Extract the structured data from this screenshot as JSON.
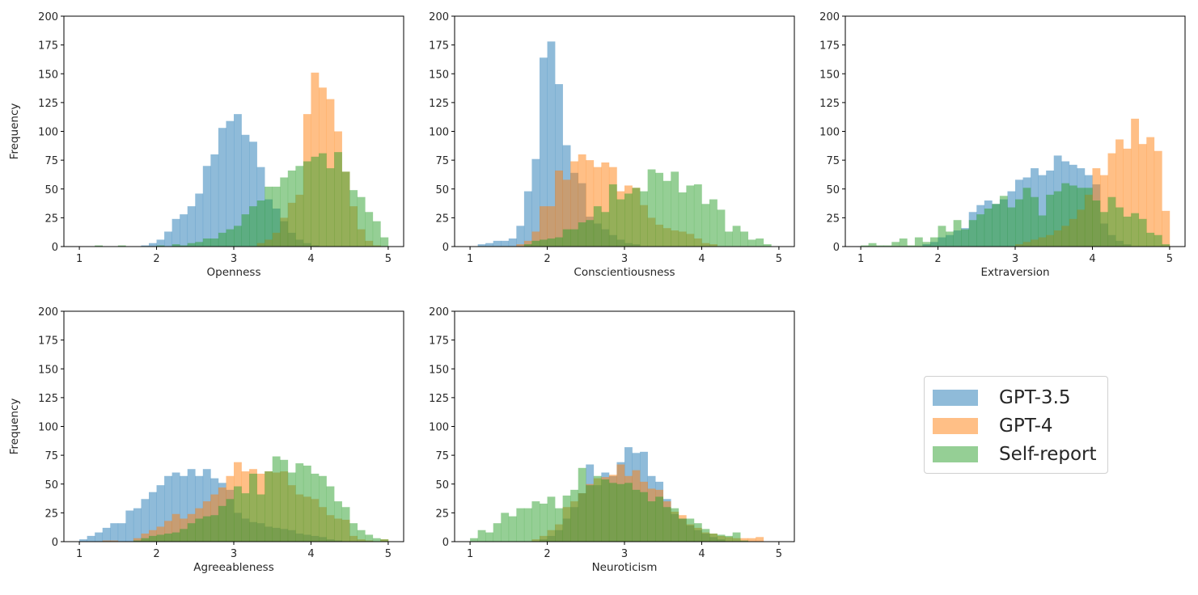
{
  "chart_data": [
    {
      "type": "bar",
      "xlabel": "Openness",
      "ylabel": "Frequency",
      "xlim": [
        0.8,
        5.2
      ],
      "ylim": [
        0,
        200
      ],
      "xticks": [
        1,
        2,
        3,
        4,
        5
      ],
      "yticks": [
        0,
        25,
        50,
        75,
        100,
        125,
        150,
        175,
        200
      ],
      "bin_start": 1.0,
      "bin_width": 0.1,
      "series": [
        {
          "name": "GPT-3.5",
          "color": "#1f77b4",
          "values": [
            0,
            0,
            0,
            0,
            0,
            0,
            0,
            0,
            1,
            3,
            6,
            13,
            24,
            28,
            35,
            46,
            70,
            80,
            103,
            109,
            115,
            97,
            91,
            69,
            41,
            33,
            22,
            12,
            6,
            3,
            1,
            0,
            0,
            0,
            0,
            0,
            0,
            0,
            0,
            0
          ]
        },
        {
          "name": "GPT-4",
          "color": "#ff7f0e",
          "values": [
            0,
            0,
            0,
            0,
            0,
            0,
            0,
            0,
            0,
            0,
            0,
            0,
            0,
            0,
            0,
            0,
            0,
            0,
            0,
            0,
            0,
            0,
            0,
            3,
            6,
            12,
            25,
            38,
            45,
            115,
            151,
            138,
            128,
            100,
            65,
            35,
            15,
            5,
            1,
            0
          ]
        },
        {
          "name": "Self-report",
          "color": "#2ca02c",
          "values": [
            0,
            0,
            1,
            0,
            0,
            1,
            0,
            0,
            0,
            0,
            1,
            0,
            2,
            1,
            3,
            4,
            7,
            7,
            12,
            15,
            18,
            28,
            35,
            40,
            52,
            52,
            60,
            66,
            70,
            74,
            78,
            81,
            68,
            82,
            65,
            49,
            43,
            30,
            22,
            8
          ]
        }
      ]
    },
    {
      "type": "bar",
      "xlabel": "Conscientiousness",
      "ylabel": "",
      "xlim": [
        0.8,
        5.2
      ],
      "ylim": [
        0,
        200
      ],
      "xticks": [
        1,
        2,
        3,
        4,
        5
      ],
      "yticks": [
        0,
        25,
        50,
        75,
        100,
        125,
        150,
        175,
        200
      ],
      "bin_start": 1.0,
      "bin_width": 0.1,
      "series": [
        {
          "name": "GPT-3.5",
          "color": "#1f77b4",
          "values": [
            0,
            2,
            3,
            5,
            5,
            7,
            18,
            48,
            76,
            164,
            178,
            141,
            88,
            64,
            55,
            26,
            20,
            15,
            10,
            6,
            3,
            2,
            0,
            0,
            0,
            0,
            0,
            0,
            0,
            0,
            0,
            0,
            0,
            0,
            0,
            0,
            0,
            0,
            0,
            0
          ]
        },
        {
          "name": "GPT-4",
          "color": "#ff7f0e",
          "values": [
            0,
            0,
            0,
            0,
            0,
            0,
            2,
            5,
            13,
            35,
            35,
            66,
            58,
            74,
            80,
            75,
            69,
            73,
            69,
            48,
            53,
            51,
            36,
            25,
            19,
            16,
            14,
            13,
            11,
            7,
            3,
            2,
            0,
            0,
            0,
            0,
            0,
            0,
            0,
            0
          ]
        },
        {
          "name": "Self-report",
          "color": "#2ca02c",
          "values": [
            0,
            0,
            0,
            0,
            0,
            0,
            0,
            2,
            5,
            6,
            7,
            8,
            15,
            15,
            21,
            23,
            35,
            30,
            54,
            41,
            46,
            51,
            48,
            67,
            64,
            57,
            65,
            47,
            53,
            54,
            37,
            41,
            32,
            13,
            18,
            13,
            6,
            7,
            2,
            0
          ]
        }
      ]
    },
    {
      "type": "bar",
      "xlabel": "Extraversion",
      "ylabel": "",
      "xlim": [
        0.8,
        5.2
      ],
      "ylim": [
        0,
        200
      ],
      "xticks": [
        1,
        2,
        3,
        4,
        5
      ],
      "yticks": [
        0,
        25,
        50,
        75,
        100,
        125,
        150,
        175,
        200
      ],
      "bin_start": 1.0,
      "bin_width": 0.1,
      "series": [
        {
          "name": "GPT-3.5",
          "color": "#1f77b4",
          "values": [
            0,
            0,
            0,
            0,
            0,
            0,
            0,
            0,
            2,
            4,
            8,
            10,
            14,
            16,
            30,
            36,
            40,
            37,
            41,
            48,
            58,
            60,
            68,
            62,
            66,
            79,
            74,
            71,
            68,
            62,
            54,
            20,
            10,
            5,
            2,
            0,
            0,
            0,
            0,
            0
          ]
        },
        {
          "name": "GPT-4",
          "color": "#ff7f0e",
          "values": [
            0,
            0,
            0,
            0,
            0,
            0,
            0,
            0,
            0,
            0,
            0,
            0,
            0,
            0,
            0,
            0,
            0,
            0,
            0,
            0,
            2,
            4,
            6,
            8,
            10,
            14,
            18,
            24,
            32,
            45,
            68,
            62,
            81,
            93,
            85,
            111,
            89,
            95,
            83,
            31
          ]
        },
        {
          "name": "Self-report",
          "color": "#2ca02c",
          "values": [
            1,
            3,
            1,
            1,
            4,
            7,
            1,
            8,
            4,
            8,
            18,
            13,
            23,
            15,
            23,
            28,
            33,
            37,
            44,
            34,
            41,
            51,
            43,
            27,
            45,
            48,
            55,
            53,
            51,
            51,
            40,
            30,
            43,
            34,
            26,
            29,
            24,
            12,
            10,
            2
          ]
        }
      ]
    },
    {
      "type": "bar",
      "xlabel": "Agreeableness",
      "ylabel": "Frequency",
      "xlim": [
        0.8,
        5.2
      ],
      "ylim": [
        0,
        200
      ],
      "xticks": [
        1,
        2,
        3,
        4,
        5
      ],
      "yticks": [
        0,
        25,
        50,
        75,
        100,
        125,
        150,
        175,
        200
      ],
      "bin_start": 1.0,
      "bin_width": 0.1,
      "series": [
        {
          "name": "GPT-3.5",
          "color": "#1f77b4",
          "values": [
            2,
            5,
            8,
            12,
            16,
            16,
            27,
            29,
            37,
            43,
            49,
            57,
            60,
            57,
            63,
            57,
            63,
            55,
            51,
            45,
            25,
            20,
            17,
            16,
            13,
            12,
            11,
            10,
            7,
            6,
            5,
            4,
            2,
            1,
            0,
            0,
            0,
            0,
            0,
            0
          ]
        },
        {
          "name": "GPT-4",
          "color": "#ff7f0e",
          "values": [
            0,
            0,
            0,
            1,
            1,
            0,
            0,
            3,
            7,
            10,
            13,
            18,
            24,
            20,
            24,
            29,
            35,
            41,
            47,
            57,
            69,
            61,
            63,
            59,
            61,
            60,
            61,
            49,
            41,
            39,
            37,
            30,
            23,
            20,
            19,
            5,
            2,
            1,
            0,
            2
          ]
        },
        {
          "name": "Self-report",
          "color": "#2ca02c",
          "values": [
            0,
            0,
            0,
            0,
            0,
            0,
            0,
            1,
            3,
            5,
            6,
            7,
            8,
            11,
            16,
            20,
            22,
            23,
            31,
            37,
            48,
            42,
            59,
            41,
            61,
            74,
            71,
            60,
            68,
            66,
            59,
            57,
            48,
            35,
            30,
            16,
            10,
            6,
            3,
            2
          ]
        }
      ]
    },
    {
      "type": "bar",
      "xlabel": "Neuroticism",
      "ylabel": "",
      "xlim": [
        0.8,
        5.2
      ],
      "ylim": [
        0,
        200
      ],
      "xticks": [
        1,
        2,
        3,
        4,
        5
      ],
      "yticks": [
        0,
        25,
        50,
        75,
        100,
        125,
        150,
        175,
        200
      ],
      "bin_start": 1.0,
      "bin_width": 0.1,
      "series": [
        {
          "name": "GPT-3.5",
          "color": "#1f77b4",
          "values": [
            0,
            0,
            0,
            0,
            0,
            0,
            0,
            0,
            0,
            2,
            5,
            10,
            20,
            30,
            42,
            67,
            49,
            60,
            57,
            69,
            82,
            77,
            78,
            57,
            52,
            37,
            24,
            20,
            14,
            10,
            7,
            4,
            2,
            0,
            0,
            0,
            0,
            0,
            0,
            0
          ]
        },
        {
          "name": "GPT-4",
          "color": "#ff7f0e",
          "values": [
            0,
            0,
            0,
            0,
            0,
            0,
            0,
            0,
            2,
            5,
            10,
            15,
            30,
            35,
            42,
            50,
            55,
            56,
            58,
            67,
            57,
            62,
            52,
            46,
            45,
            35,
            26,
            23,
            15,
            12,
            8,
            7,
            5,
            4,
            3,
            3,
            3,
            4,
            0,
            0
          ]
        },
        {
          "name": "Self-report",
          "color": "#2ca02c",
          "values": [
            3,
            10,
            8,
            16,
            25,
            22,
            29,
            29,
            35,
            33,
            39,
            29,
            40,
            45,
            64,
            49,
            57,
            54,
            51,
            50,
            51,
            45,
            43,
            35,
            39,
            30,
            29,
            20,
            20,
            16,
            11,
            7,
            6,
            5,
            8,
            1,
            0,
            0,
            0,
            0
          ]
        }
      ]
    }
  ],
  "legend": {
    "placement": "right",
    "entries": [
      {
        "label": "GPT-3.5",
        "color": "#1f77b4"
      },
      {
        "label": "GPT-4",
        "color": "#ff7f0e"
      },
      {
        "label": "Self-report",
        "color": "#2ca02c"
      }
    ]
  }
}
